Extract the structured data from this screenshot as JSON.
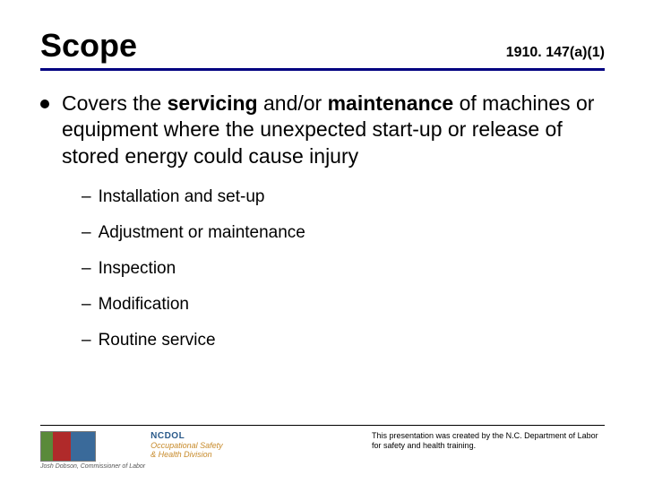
{
  "header": {
    "title": "Scope",
    "regref": "1910. 147(a)(1)"
  },
  "colors": {
    "rule": "#000080",
    "text": "#000000",
    "background": "#ffffff"
  },
  "typography": {
    "title_fontsize": 36,
    "body_fontsize": 23,
    "sub_fontsize": 19,
    "credit_fontsize": 9
  },
  "main": {
    "prefix": "Covers the ",
    "bold1": "servicing ",
    "mid": "and/or ",
    "bold2": "maintenance ",
    "suffix": "of machines or equipment where the unexpected start-up or release of stored energy could cause injury"
  },
  "sub_items": [
    "Installation and set-up",
    "Adjustment or maintenance",
    "Inspection",
    "Modification",
    "Routine service"
  ],
  "footer": {
    "ncdol": "NCDOL",
    "osh_line1": "Occupational Safety",
    "osh_line2": "& Health Division",
    "commissioner": "Josh Dobson, Commissioner of Labor",
    "credit": "This presentation was created by the N.C. Department of Labor for safety and health training."
  }
}
